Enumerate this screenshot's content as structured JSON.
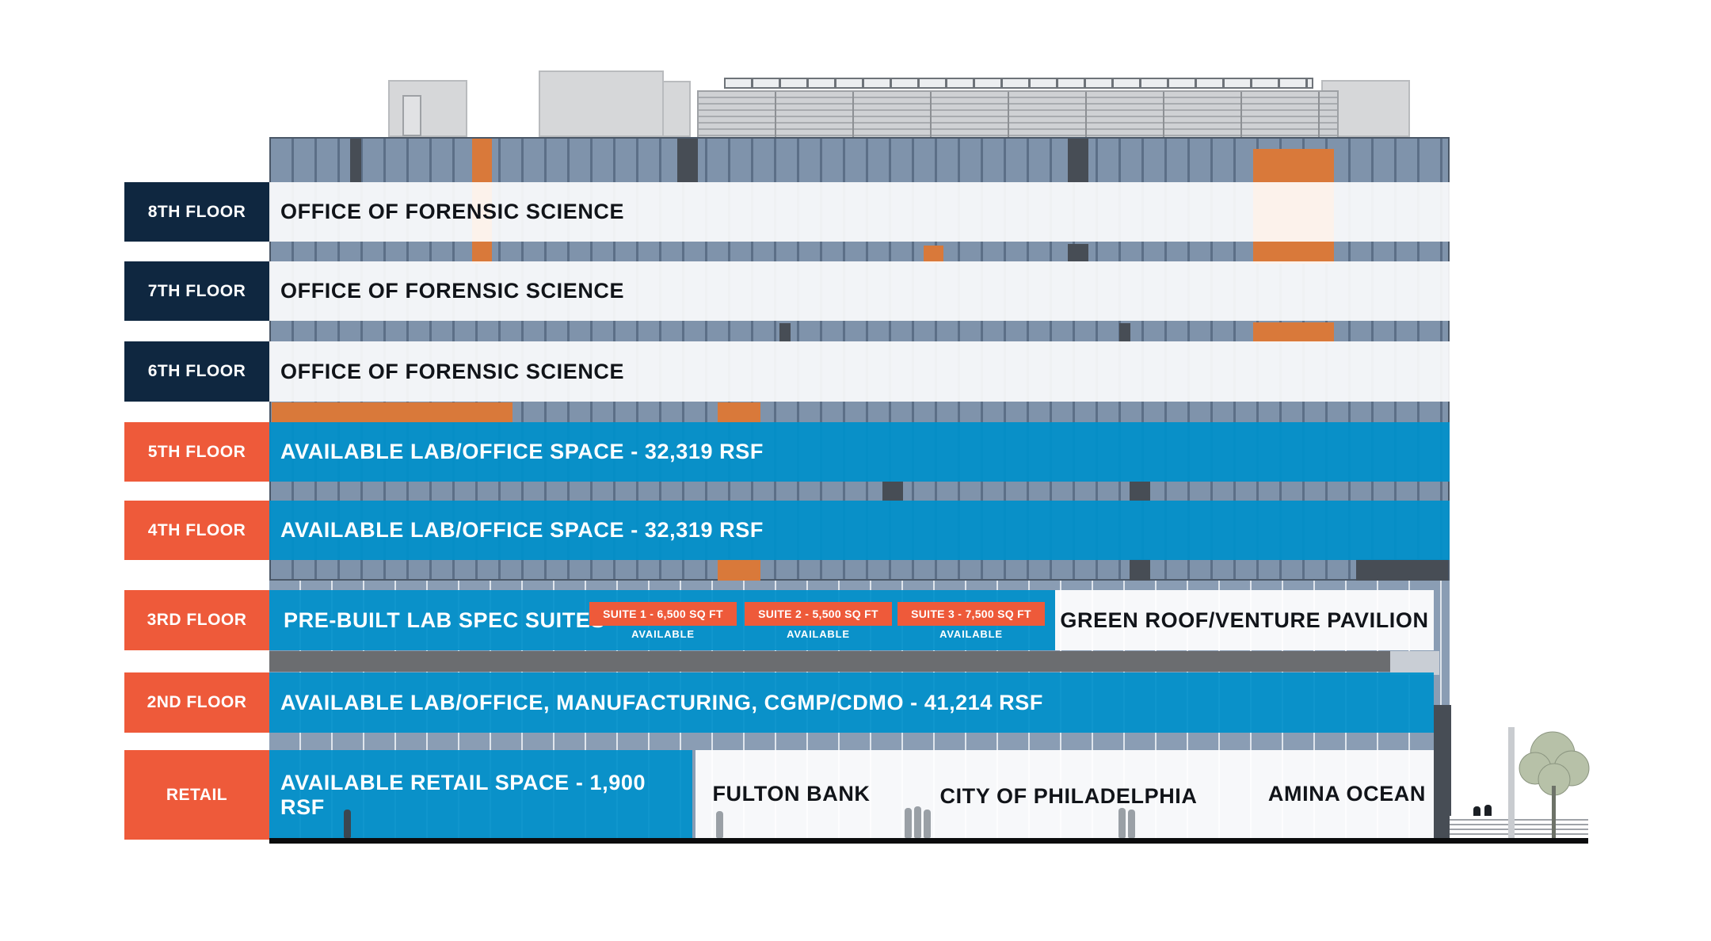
{
  "floors": [
    {
      "tag": "8TH FLOOR",
      "tenant": "OFFICE OF FORENSIC SCIENCE",
      "status": "occupied"
    },
    {
      "tag": "7TH FLOOR",
      "tenant": "OFFICE OF FORENSIC SCIENCE",
      "status": "occupied"
    },
    {
      "tag": "6TH FLOOR",
      "tenant": "OFFICE OF FORENSIC SCIENCE",
      "status": "occupied"
    },
    {
      "tag": "5TH FLOOR",
      "tenant": "AVAILABLE LAB/OFFICE SPACE -  32,319 RSF",
      "status": "available"
    },
    {
      "tag": "4TH FLOOR",
      "tenant": "AVAILABLE LAB/OFFICE SPACE -  32,319 RSF",
      "status": "available"
    },
    {
      "tag": "3RD FLOOR",
      "tenant": "PRE-BUILT LAB SPEC SUITES",
      "status": "available"
    },
    {
      "tag": "2ND FLOOR",
      "tenant": "AVAILABLE LAB/OFFICE, MANUFACTURING, CGMP/CDMO -  41,214 RSF",
      "status": "available"
    },
    {
      "tag": "RETAIL",
      "tenant": "AVAILABLE RETAIL SPACE - 1,900 RSF",
      "status": "available"
    }
  ],
  "third_floor": {
    "suites": [
      {
        "label": "SUITE 1 - 6,500 SQ FT",
        "status": "AVAILABLE"
      },
      {
        "label": "SUITE 2 - 5,500 SQ FT",
        "status": "AVAILABLE"
      },
      {
        "label": "SUITE 3 - 7,500 SQ FT",
        "status": "AVAILABLE"
      }
    ],
    "adjacent": "GREEN ROOF/VENTURE PAVILION"
  },
  "retail_tenants": [
    "FULTON BANK",
    "CITY OF PHILADELPHIA",
    "AMINA OCEAN"
  ],
  "colors": {
    "navy": "#0f2740",
    "orange": "#ee5a3a",
    "available_blue": "#0090ca",
    "accent_orange": "#d9793a"
  }
}
